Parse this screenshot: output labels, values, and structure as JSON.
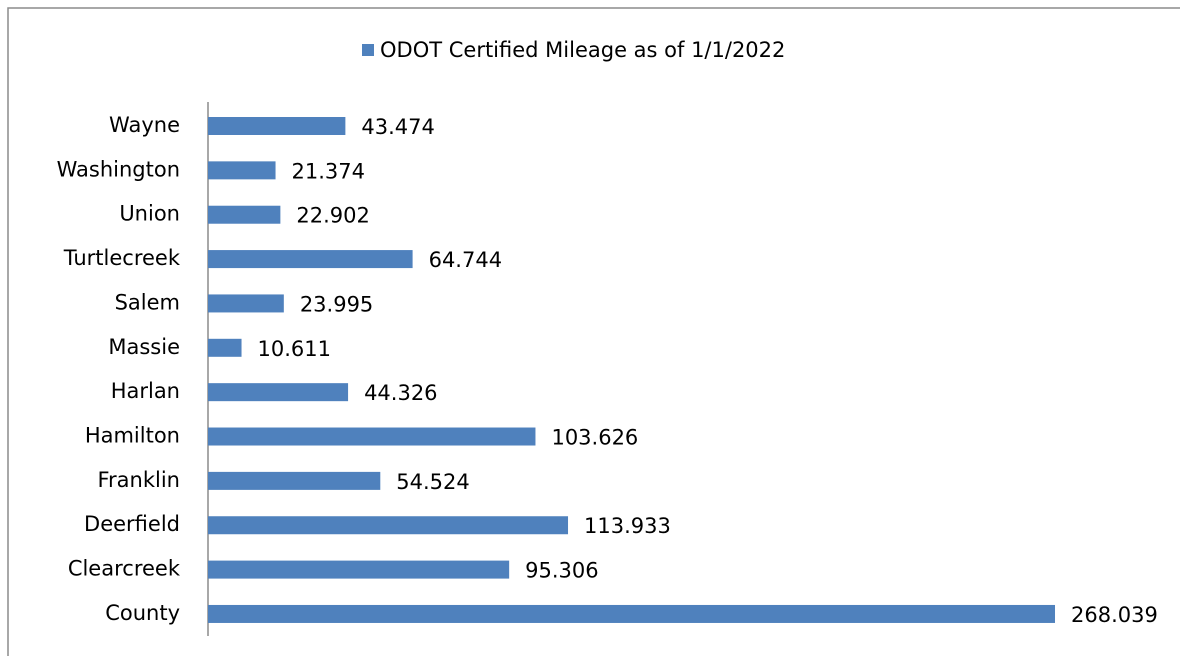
{
  "chart_data": {
    "type": "bar",
    "orientation": "horizontal",
    "categories": [
      "Wayne",
      "Washington",
      "Union",
      "Turtlecreek",
      "Salem",
      "Massie",
      "Harlan",
      "Hamilton",
      "Franklin",
      "Deerfield",
      "Clearcreek",
      "County"
    ],
    "series": [
      {
        "name": "ODOT Certified Mileage as of 1/1/2022",
        "color": "#4f81bd",
        "values": [
          43.474,
          21.374,
          22.902,
          64.744,
          23.995,
          10.611,
          44.326,
          103.626,
          54.524,
          113.933,
          95.306,
          268.039
        ]
      }
    ],
    "xlim": [
      0,
      300
    ],
    "legend": "top"
  }
}
